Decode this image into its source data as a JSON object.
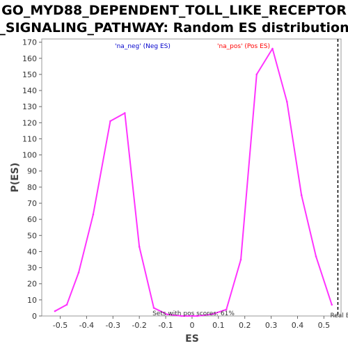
{
  "chart_data": {
    "type": "line",
    "title_lines": [
      "GO_MYD88_DEPENDENT_TOLL_LIKE_RECEPTOR",
      "_SIGNALING_PATHWAY: Random ES distribution"
    ],
    "xlabel": "ES",
    "ylabel": "P(ES)",
    "xlim": [
      -0.57,
      0.565
    ],
    "ylim": [
      0,
      172
    ],
    "x_ticks": [
      -0.5,
      -0.4,
      -0.3,
      -0.2,
      -0.1,
      0,
      0.1,
      0.2,
      0.3,
      0.4,
      0.5
    ],
    "x_tick_labels": [
      "-0.5",
      "-0.4",
      "-0.3",
      "-0.2",
      "-0.1",
      "0",
      "0.1",
      "0.2",
      "0.3",
      "0.4",
      "0.5"
    ],
    "y_ticks": [
      0,
      10,
      20,
      30,
      40,
      50,
      60,
      70,
      80,
      90,
      100,
      110,
      120,
      130,
      140,
      150,
      160,
      170
    ],
    "grid": false,
    "series": [
      {
        "color": "#ff33ff",
        "x": [
          -0.52,
          -0.475,
          -0.43,
          -0.375,
          -0.31,
          -0.255,
          -0.2,
          -0.145,
          -0.095,
          -0.04,
          0.02,
          0.075,
          0.13,
          0.185,
          0.245,
          0.305,
          0.36,
          0.415,
          0.47,
          0.53
        ],
        "y": [
          3,
          7,
          27,
          63,
          121,
          126,
          43,
          5,
          1,
          0,
          0,
          1,
          4,
          35,
          150,
          166,
          133,
          75,
          37,
          7
        ]
      }
    ],
    "annotations": {
      "neg_label": "'na_neg' (Neg ES)",
      "pos_label": "'na_pos' (Pos ES)",
      "neg_color": "#0000cc",
      "pos_color": "#ff0000",
      "sets_text": "Sets with pos scores: 61%",
      "real_es_label": "Real ES",
      "real_es": 0.553
    }
  }
}
